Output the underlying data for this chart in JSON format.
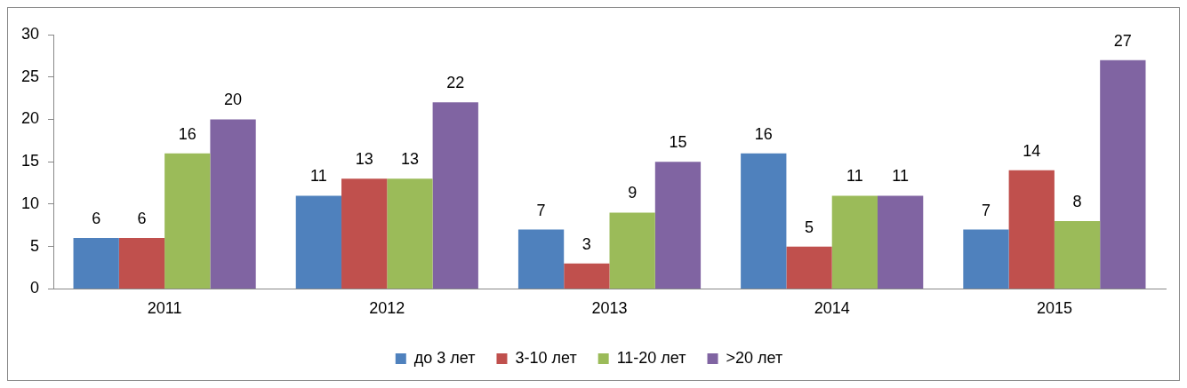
{
  "chart_data": {
    "type": "bar",
    "categories": [
      "2011",
      "2012",
      "2013",
      "2014",
      "2015"
    ],
    "series": [
      {
        "name": "до 3 лет",
        "color": "#4f81bd",
        "values": [
          6,
          11,
          7,
          16,
          7
        ]
      },
      {
        "name": "3-10 лет",
        "color": "#c0504d",
        "values": [
          6,
          13,
          3,
          5,
          14
        ]
      },
      {
        "name": "11-20 лет",
        "color": "#9bbb59",
        "values": [
          16,
          13,
          9,
          11,
          8
        ]
      },
      {
        "name": ">20 лет",
        "color": "#8064a2",
        "values": [
          20,
          22,
          15,
          11,
          27
        ]
      }
    ],
    "ylim": [
      0,
      30
    ],
    "yticks": [
      0,
      5,
      10,
      15,
      20,
      25,
      30
    ],
    "grid": false,
    "legend": "bottom",
    "data_labels": true
  }
}
